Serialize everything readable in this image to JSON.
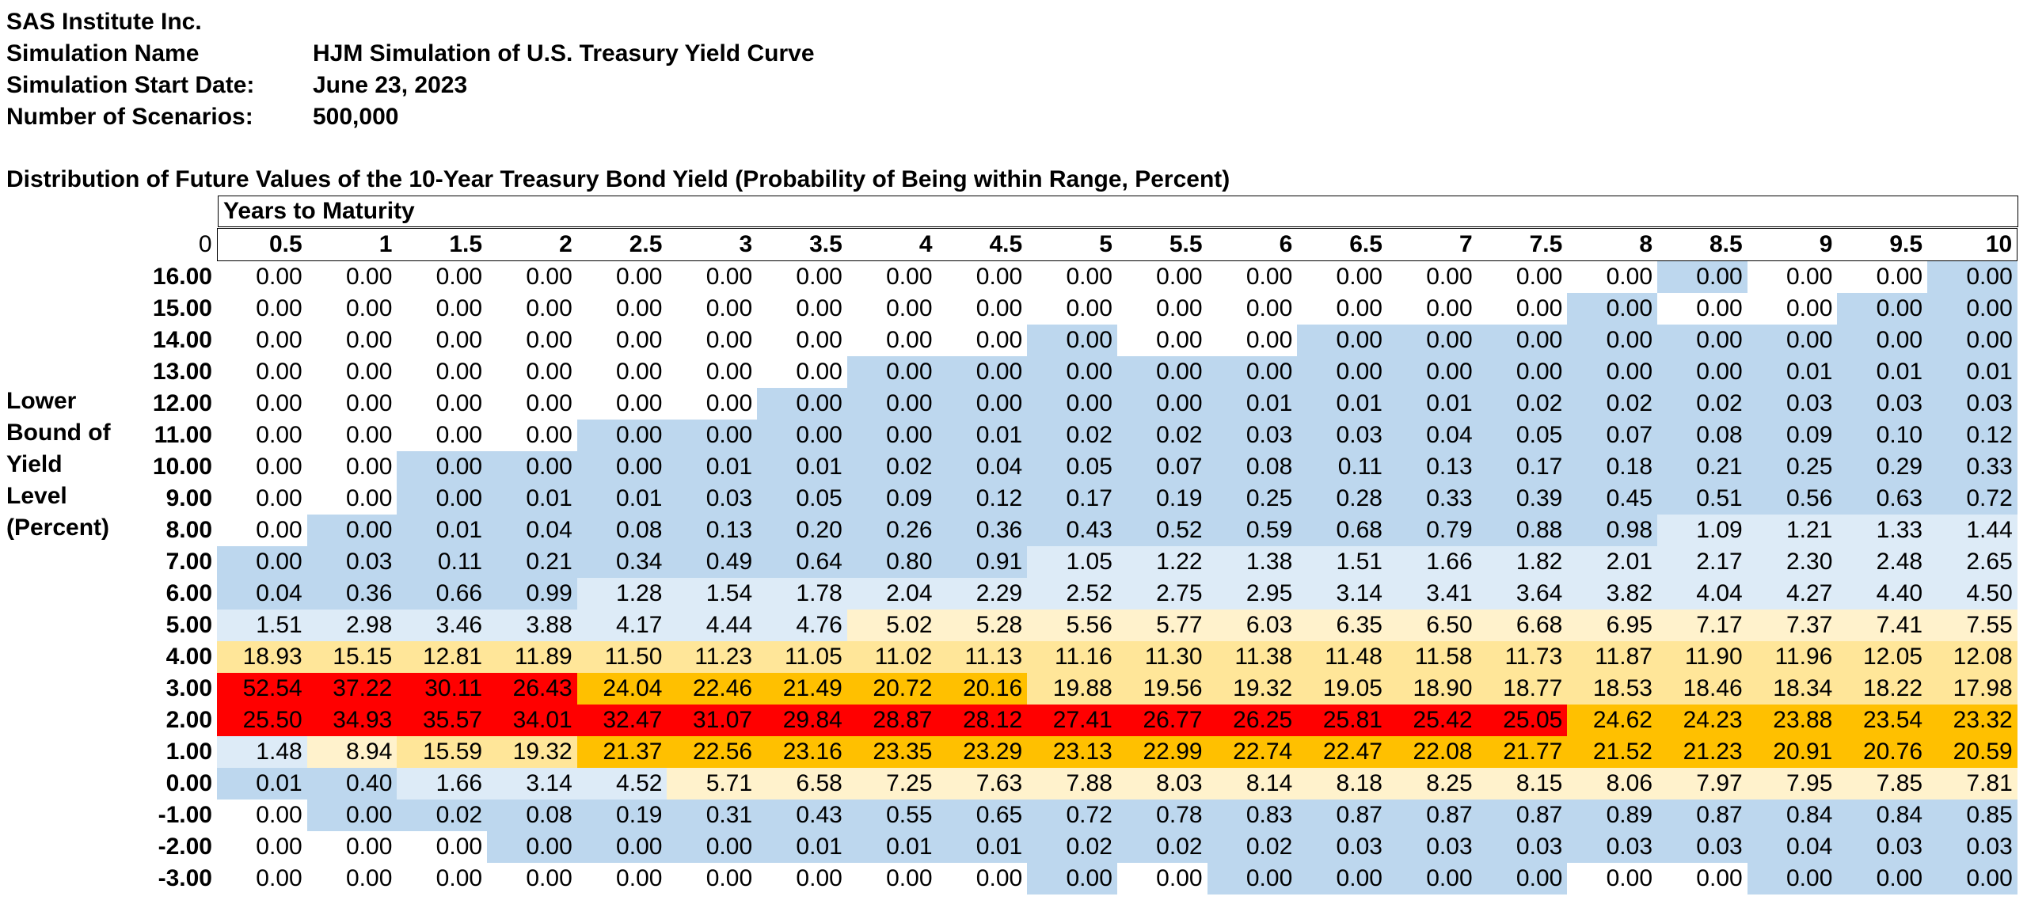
{
  "meta": [
    {
      "label": "SAS Institute Inc.",
      "value": ""
    },
    {
      "label": "Simulation Name",
      "value": "HJM Simulation of U.S. Treasury Yield Curve"
    },
    {
      "label": "Simulation Start Date:",
      "value": "June 23, 2023"
    },
    {
      "label": "Number of Scenarios:",
      "value": "500,000"
    }
  ],
  "table_title": "Distribution of Future Values of the 10-Year Treasury Bond Yield (Probability of Being within Range, Percent)",
  "col_group_label": "Years to Maturity",
  "corner_value": "0",
  "row_axis_label": [
    "Lower",
    "Bound of",
    "Yield",
    "Level",
    "(Percent)"
  ],
  "columns": [
    "0.5",
    "1",
    "1.5",
    "2",
    "2.5",
    "3",
    "3.5",
    "4",
    "4.5",
    "5",
    "5.5",
    "6",
    "6.5",
    "7",
    "7.5",
    "8",
    "8.5",
    "9",
    "9.5",
    "10"
  ],
  "rows": [
    {
      "label": "16.00",
      "values": [
        "0.00",
        "0.00",
        "0.00",
        "0.00",
        "0.00",
        "0.00",
        "0.00",
        "0.00",
        "0.00",
        "0.00",
        "0.00",
        "0.00",
        "0.00",
        "0.00",
        "0.00",
        "0.00",
        "0.00",
        "0.00",
        "0.00",
        "0.00"
      ],
      "shade": [
        0,
        0,
        0,
        0,
        0,
        0,
        0,
        0,
        0,
        0,
        0,
        0,
        0,
        0,
        0,
        0,
        1,
        0,
        0,
        1
      ]
    },
    {
      "label": "15.00",
      "values": [
        "0.00",
        "0.00",
        "0.00",
        "0.00",
        "0.00",
        "0.00",
        "0.00",
        "0.00",
        "0.00",
        "0.00",
        "0.00",
        "0.00",
        "0.00",
        "0.00",
        "0.00",
        "0.00",
        "0.00",
        "0.00",
        "0.00",
        "0.00"
      ],
      "shade": [
        0,
        0,
        0,
        0,
        0,
        0,
        0,
        0,
        0,
        0,
        0,
        0,
        0,
        0,
        0,
        1,
        0,
        0,
        1,
        1
      ]
    },
    {
      "label": "14.00",
      "values": [
        "0.00",
        "0.00",
        "0.00",
        "0.00",
        "0.00",
        "0.00",
        "0.00",
        "0.00",
        "0.00",
        "0.00",
        "0.00",
        "0.00",
        "0.00",
        "0.00",
        "0.00",
        "0.00",
        "0.00",
        "0.00",
        "0.00",
        "0.00"
      ],
      "shade": [
        0,
        0,
        0,
        0,
        0,
        0,
        0,
        0,
        0,
        1,
        0,
        0,
        1,
        1,
        1,
        1,
        1,
        1,
        1,
        1
      ]
    },
    {
      "label": "13.00",
      "values": [
        "0.00",
        "0.00",
        "0.00",
        "0.00",
        "0.00",
        "0.00",
        "0.00",
        "0.00",
        "0.00",
        "0.00",
        "0.00",
        "0.00",
        "0.00",
        "0.00",
        "0.00",
        "0.00",
        "0.00",
        "0.01",
        "0.01",
        "0.01"
      ],
      "shade": [
        0,
        0,
        0,
        0,
        0,
        0,
        0,
        1,
        1,
        1,
        1,
        1,
        1,
        1,
        1,
        1,
        1,
        1,
        1,
        1
      ]
    },
    {
      "label": "12.00",
      "values": [
        "0.00",
        "0.00",
        "0.00",
        "0.00",
        "0.00",
        "0.00",
        "0.00",
        "0.00",
        "0.00",
        "0.00",
        "0.00",
        "0.01",
        "0.01",
        "0.01",
        "0.02",
        "0.02",
        "0.02",
        "0.03",
        "0.03",
        "0.03"
      ],
      "shade": [
        0,
        0,
        0,
        0,
        0,
        0,
        1,
        1,
        1,
        1,
        1,
        1,
        1,
        1,
        1,
        1,
        1,
        1,
        1,
        1
      ]
    },
    {
      "label": "11.00",
      "values": [
        "0.00",
        "0.00",
        "0.00",
        "0.00",
        "0.00",
        "0.00",
        "0.00",
        "0.00",
        "0.01",
        "0.02",
        "0.02",
        "0.03",
        "0.03",
        "0.04",
        "0.05",
        "0.07",
        "0.08",
        "0.09",
        "0.10",
        "0.12"
      ],
      "shade": [
        0,
        0,
        0,
        0,
        1,
        1,
        1,
        1,
        1,
        1,
        1,
        1,
        1,
        1,
        1,
        1,
        1,
        1,
        1,
        1
      ]
    },
    {
      "label": "10.00",
      "values": [
        "0.00",
        "0.00",
        "0.00",
        "0.00",
        "0.00",
        "0.01",
        "0.01",
        "0.02",
        "0.04",
        "0.05",
        "0.07",
        "0.08",
        "0.11",
        "0.13",
        "0.17",
        "0.18",
        "0.21",
        "0.25",
        "0.29",
        "0.33"
      ],
      "shade": [
        0,
        0,
        1,
        1,
        1,
        1,
        1,
        1,
        1,
        1,
        1,
        1,
        1,
        1,
        1,
        1,
        1,
        1,
        1,
        1
      ]
    },
    {
      "label": "9.00",
      "values": [
        "0.00",
        "0.00",
        "0.00",
        "0.01",
        "0.01",
        "0.03",
        "0.05",
        "0.09",
        "0.12",
        "0.17",
        "0.19",
        "0.25",
        "0.28",
        "0.33",
        "0.39",
        "0.45",
        "0.51",
        "0.56",
        "0.63",
        "0.72"
      ],
      "shade": [
        0,
        0,
        1,
        1,
        1,
        1,
        1,
        1,
        1,
        1,
        1,
        1,
        1,
        1,
        1,
        1,
        1,
        1,
        1,
        1
      ]
    },
    {
      "label": "8.00",
      "values": [
        "0.00",
        "0.00",
        "0.01",
        "0.04",
        "0.08",
        "0.13",
        "0.20",
        "0.26",
        "0.36",
        "0.43",
        "0.52",
        "0.59",
        "0.68",
        "0.79",
        "0.88",
        "0.98",
        "1.09",
        "1.21",
        "1.33",
        "1.44"
      ],
      "shade": [
        0,
        1,
        1,
        1,
        1,
        1,
        1,
        1,
        1,
        1,
        1,
        1,
        1,
        1,
        1,
        1,
        2,
        2,
        2,
        2
      ]
    },
    {
      "label": "7.00",
      "values": [
        "0.00",
        "0.03",
        "0.11",
        "0.21",
        "0.34",
        "0.49",
        "0.64",
        "0.80",
        "0.91",
        "1.05",
        "1.22",
        "1.38",
        "1.51",
        "1.66",
        "1.82",
        "2.01",
        "2.17",
        "2.30",
        "2.48",
        "2.65"
      ],
      "shade": [
        1,
        1,
        1,
        1,
        1,
        1,
        1,
        1,
        1,
        2,
        2,
        2,
        2,
        2,
        2,
        2,
        2,
        2,
        2,
        2
      ]
    },
    {
      "label": "6.00",
      "values": [
        "0.04",
        "0.36",
        "0.66",
        "0.99",
        "1.28",
        "1.54",
        "1.78",
        "2.04",
        "2.29",
        "2.52",
        "2.75",
        "2.95",
        "3.14",
        "3.41",
        "3.64",
        "3.82",
        "4.04",
        "4.27",
        "4.40",
        "4.50"
      ],
      "shade": [
        1,
        1,
        1,
        1,
        2,
        2,
        2,
        2,
        2,
        2,
        2,
        2,
        2,
        2,
        2,
        2,
        2,
        2,
        2,
        2
      ]
    },
    {
      "label": "5.00",
      "values": [
        "1.51",
        "2.98",
        "3.46",
        "3.88",
        "4.17",
        "4.44",
        "4.76",
        "5.02",
        "5.28",
        "5.56",
        "5.77",
        "6.03",
        "6.35",
        "6.50",
        "6.68",
        "6.95",
        "7.17",
        "7.37",
        "7.41",
        "7.55"
      ],
      "shade": [
        2,
        2,
        2,
        2,
        2,
        2,
        2,
        3,
        3,
        3,
        3,
        3,
        3,
        3,
        3,
        3,
        3,
        3,
        3,
        3
      ]
    },
    {
      "label": "4.00",
      "values": [
        "18.93",
        "15.15",
        "12.81",
        "11.89",
        "11.50",
        "11.23",
        "11.05",
        "11.02",
        "11.13",
        "11.16",
        "11.30",
        "11.38",
        "11.48",
        "11.58",
        "11.73",
        "11.87",
        "11.90",
        "11.96",
        "12.05",
        "12.08"
      ],
      "shade": [
        4,
        4,
        4,
        4,
        4,
        4,
        4,
        4,
        4,
        4,
        4,
        4,
        4,
        4,
        4,
        4,
        4,
        4,
        4,
        4
      ]
    },
    {
      "label": "3.00",
      "values": [
        "52.54",
        "37.22",
        "30.11",
        "26.43",
        "24.04",
        "22.46",
        "21.49",
        "20.72",
        "20.16",
        "19.88",
        "19.56",
        "19.32",
        "19.05",
        "18.90",
        "18.77",
        "18.53",
        "18.46",
        "18.34",
        "18.22",
        "17.98"
      ],
      "shade": [
        6,
        6,
        6,
        6,
        5,
        5,
        5,
        5,
        5,
        4,
        4,
        4,
        4,
        4,
        4,
        4,
        4,
        4,
        4,
        4
      ]
    },
    {
      "label": "2.00",
      "values": [
        "25.50",
        "34.93",
        "35.57",
        "34.01",
        "32.47",
        "31.07",
        "29.84",
        "28.87",
        "28.12",
        "27.41",
        "26.77",
        "26.25",
        "25.81",
        "25.42",
        "25.05",
        "24.62",
        "24.23",
        "23.88",
        "23.54",
        "23.32"
      ],
      "shade": [
        6,
        6,
        6,
        6,
        6,
        6,
        6,
        6,
        6,
        6,
        6,
        6,
        6,
        6,
        6,
        5,
        5,
        5,
        5,
        5
      ]
    },
    {
      "label": "1.00",
      "values": [
        "1.48",
        "8.94",
        "15.59",
        "19.32",
        "21.37",
        "22.56",
        "23.16",
        "23.35",
        "23.29",
        "23.13",
        "22.99",
        "22.74",
        "22.47",
        "22.08",
        "21.77",
        "21.52",
        "21.23",
        "20.91",
        "20.76",
        "20.59"
      ],
      "shade": [
        2,
        3,
        4,
        4,
        5,
        5,
        5,
        5,
        5,
        5,
        5,
        5,
        5,
        5,
        5,
        5,
        5,
        5,
        5,
        5
      ]
    },
    {
      "label": "0.00",
      "values": [
        "0.01",
        "0.40",
        "1.66",
        "3.14",
        "4.52",
        "5.71",
        "6.58",
        "7.25",
        "7.63",
        "7.88",
        "8.03",
        "8.14",
        "8.18",
        "8.25",
        "8.15",
        "8.06",
        "7.97",
        "7.95",
        "7.85",
        "7.81"
      ],
      "shade": [
        1,
        1,
        2,
        2,
        2,
        3,
        3,
        3,
        3,
        3,
        3,
        3,
        3,
        3,
        3,
        3,
        3,
        3,
        3,
        3
      ]
    },
    {
      "label": "-1.00",
      "values": [
        "0.00",
        "0.00",
        "0.02",
        "0.08",
        "0.19",
        "0.31",
        "0.43",
        "0.55",
        "0.65",
        "0.72",
        "0.78",
        "0.83",
        "0.87",
        "0.87",
        "0.87",
        "0.89",
        "0.87",
        "0.84",
        "0.84",
        "0.85"
      ],
      "shade": [
        0,
        1,
        1,
        1,
        1,
        1,
        1,
        1,
        1,
        1,
        1,
        1,
        1,
        1,
        1,
        1,
        1,
        1,
        1,
        1
      ]
    },
    {
      "label": "-2.00",
      "values": [
        "0.00",
        "0.00",
        "0.00",
        "0.00",
        "0.00",
        "0.00",
        "0.01",
        "0.01",
        "0.01",
        "0.02",
        "0.02",
        "0.02",
        "0.03",
        "0.03",
        "0.03",
        "0.03",
        "0.03",
        "0.04",
        "0.03",
        "0.03"
      ],
      "shade": [
        0,
        0,
        0,
        1,
        1,
        1,
        1,
        1,
        1,
        1,
        1,
        1,
        1,
        1,
        1,
        1,
        1,
        1,
        1,
        1
      ]
    },
    {
      "label": "-3.00",
      "values": [
        "0.00",
        "0.00",
        "0.00",
        "0.00",
        "0.00",
        "0.00",
        "0.00",
        "0.00",
        "0.00",
        "0.00",
        "0.00",
        "0.00",
        "0.00",
        "0.00",
        "0.00",
        "0.00",
        "0.00",
        "0.00",
        "0.00",
        "0.00"
      ],
      "shade": [
        0,
        0,
        0,
        0,
        0,
        0,
        0,
        0,
        0,
        1,
        0,
        1,
        1,
        1,
        1,
        0,
        0,
        1,
        1,
        1
      ]
    }
  ],
  "shade_colors": [
    "#ffffff",
    "#bdd7ee",
    "#ddebf7",
    "#fff2cc",
    "#ffe699",
    "#ffc000",
    "#ff0000"
  ]
}
